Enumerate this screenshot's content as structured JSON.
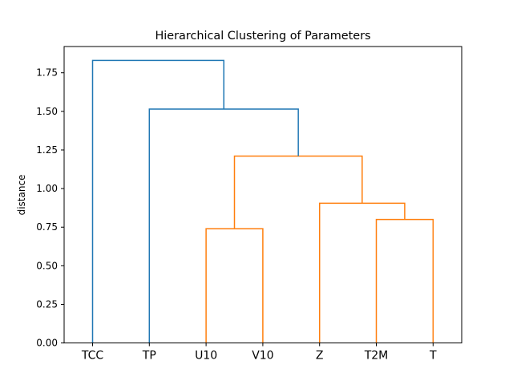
{
  "chart_data": {
    "type": "dendrogram",
    "title": "Hierarchical Clustering of Parameters",
    "xlabel": "",
    "ylabel": "distance",
    "ylim": [
      0,
      1.92
    ],
    "yticks": [
      "0.00",
      "0.25",
      "0.50",
      "0.75",
      "1.00",
      "1.25",
      "1.50",
      "1.75"
    ],
    "leaves": [
      "TCC",
      "TP",
      "U10",
      "V10",
      "Z",
      "T2M",
      "T"
    ],
    "merges": [
      {
        "left": "U10",
        "right": "V10",
        "height": 0.74,
        "color": "#ff7f0e"
      },
      {
        "left": "T2M",
        "right": "T",
        "height": 0.8,
        "color": "#ff7f0e"
      },
      {
        "left": "Z",
        "right": "{T2M, T}",
        "height": 0.905,
        "color": "#ff7f0e"
      },
      {
        "left": "{U10, V10}",
        "right": "{Z, T2M, T}",
        "height": 1.21,
        "color": "#ff7f0e"
      },
      {
        "left": "TP",
        "right": "{U10, V10, Z, T2M, T}",
        "height": 1.515,
        "color": "#1f77b4"
      },
      {
        "left": "TCC",
        "right": "{TP, U10, V10, Z, T2M, T}",
        "height": 1.83,
        "color": "#1f77b4"
      }
    ],
    "grid": false,
    "legend": "none"
  }
}
